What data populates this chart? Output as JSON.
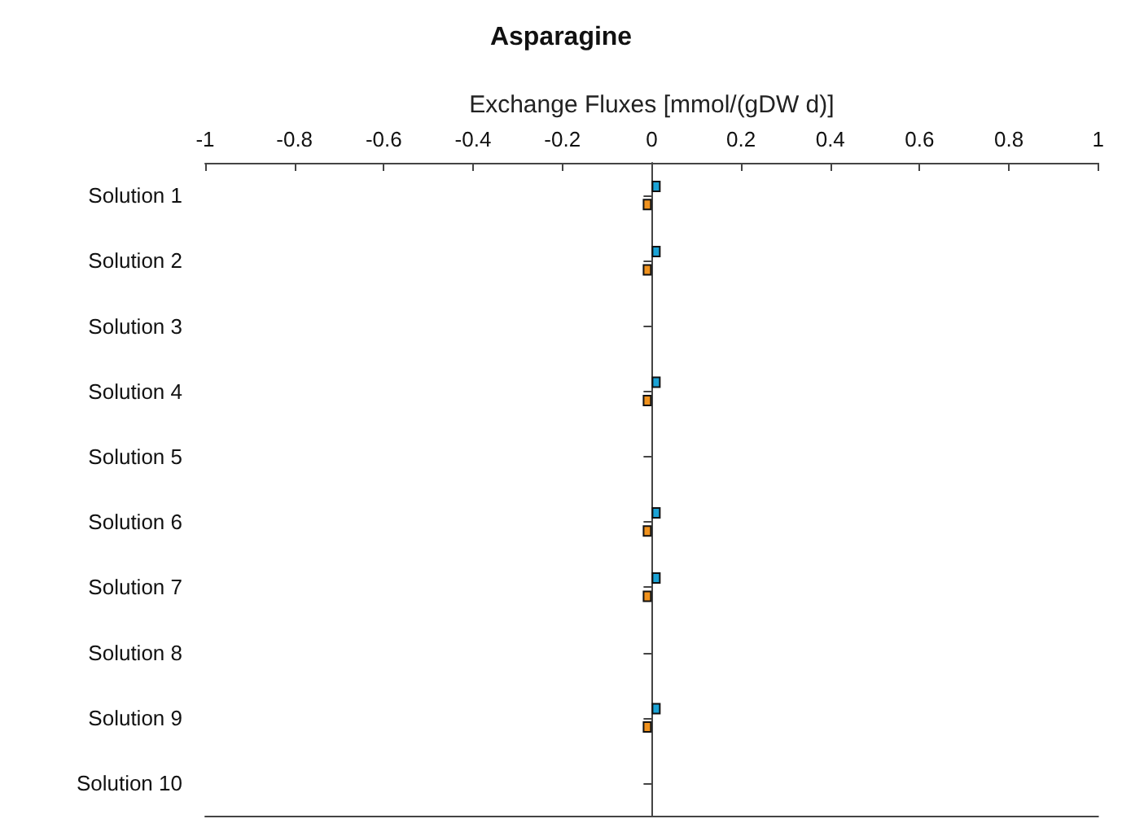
{
  "chart_data": {
    "type": "bar",
    "orientation": "horizontal",
    "title": "Asparagine",
    "xlabel": "Exchange Fluxes [mmol/(gDW d)]",
    "categories": [
      "Solution 1",
      "Solution 2",
      "Solution 3",
      "Solution 4",
      "Solution 5",
      "Solution 6",
      "Solution 7",
      "Solution 8",
      "Solution 9",
      "Solution 10"
    ],
    "series": [
      {
        "color": "#1ba3d6",
        "values": [
          0.02,
          0.02,
          null,
          0.02,
          null,
          0.02,
          0.02,
          null,
          0.02,
          null
        ]
      },
      {
        "color": "#f0921e",
        "values": [
          -0.02,
          -0.02,
          null,
          -0.02,
          null,
          -0.02,
          -0.02,
          null,
          -0.02,
          null
        ]
      }
    ],
    "xlim": [
      -1,
      1
    ],
    "xticks": [
      -1,
      -0.8,
      -0.6,
      -0.4,
      -0.2,
      0,
      0.2,
      0.4,
      0.6,
      0.8,
      1
    ]
  }
}
